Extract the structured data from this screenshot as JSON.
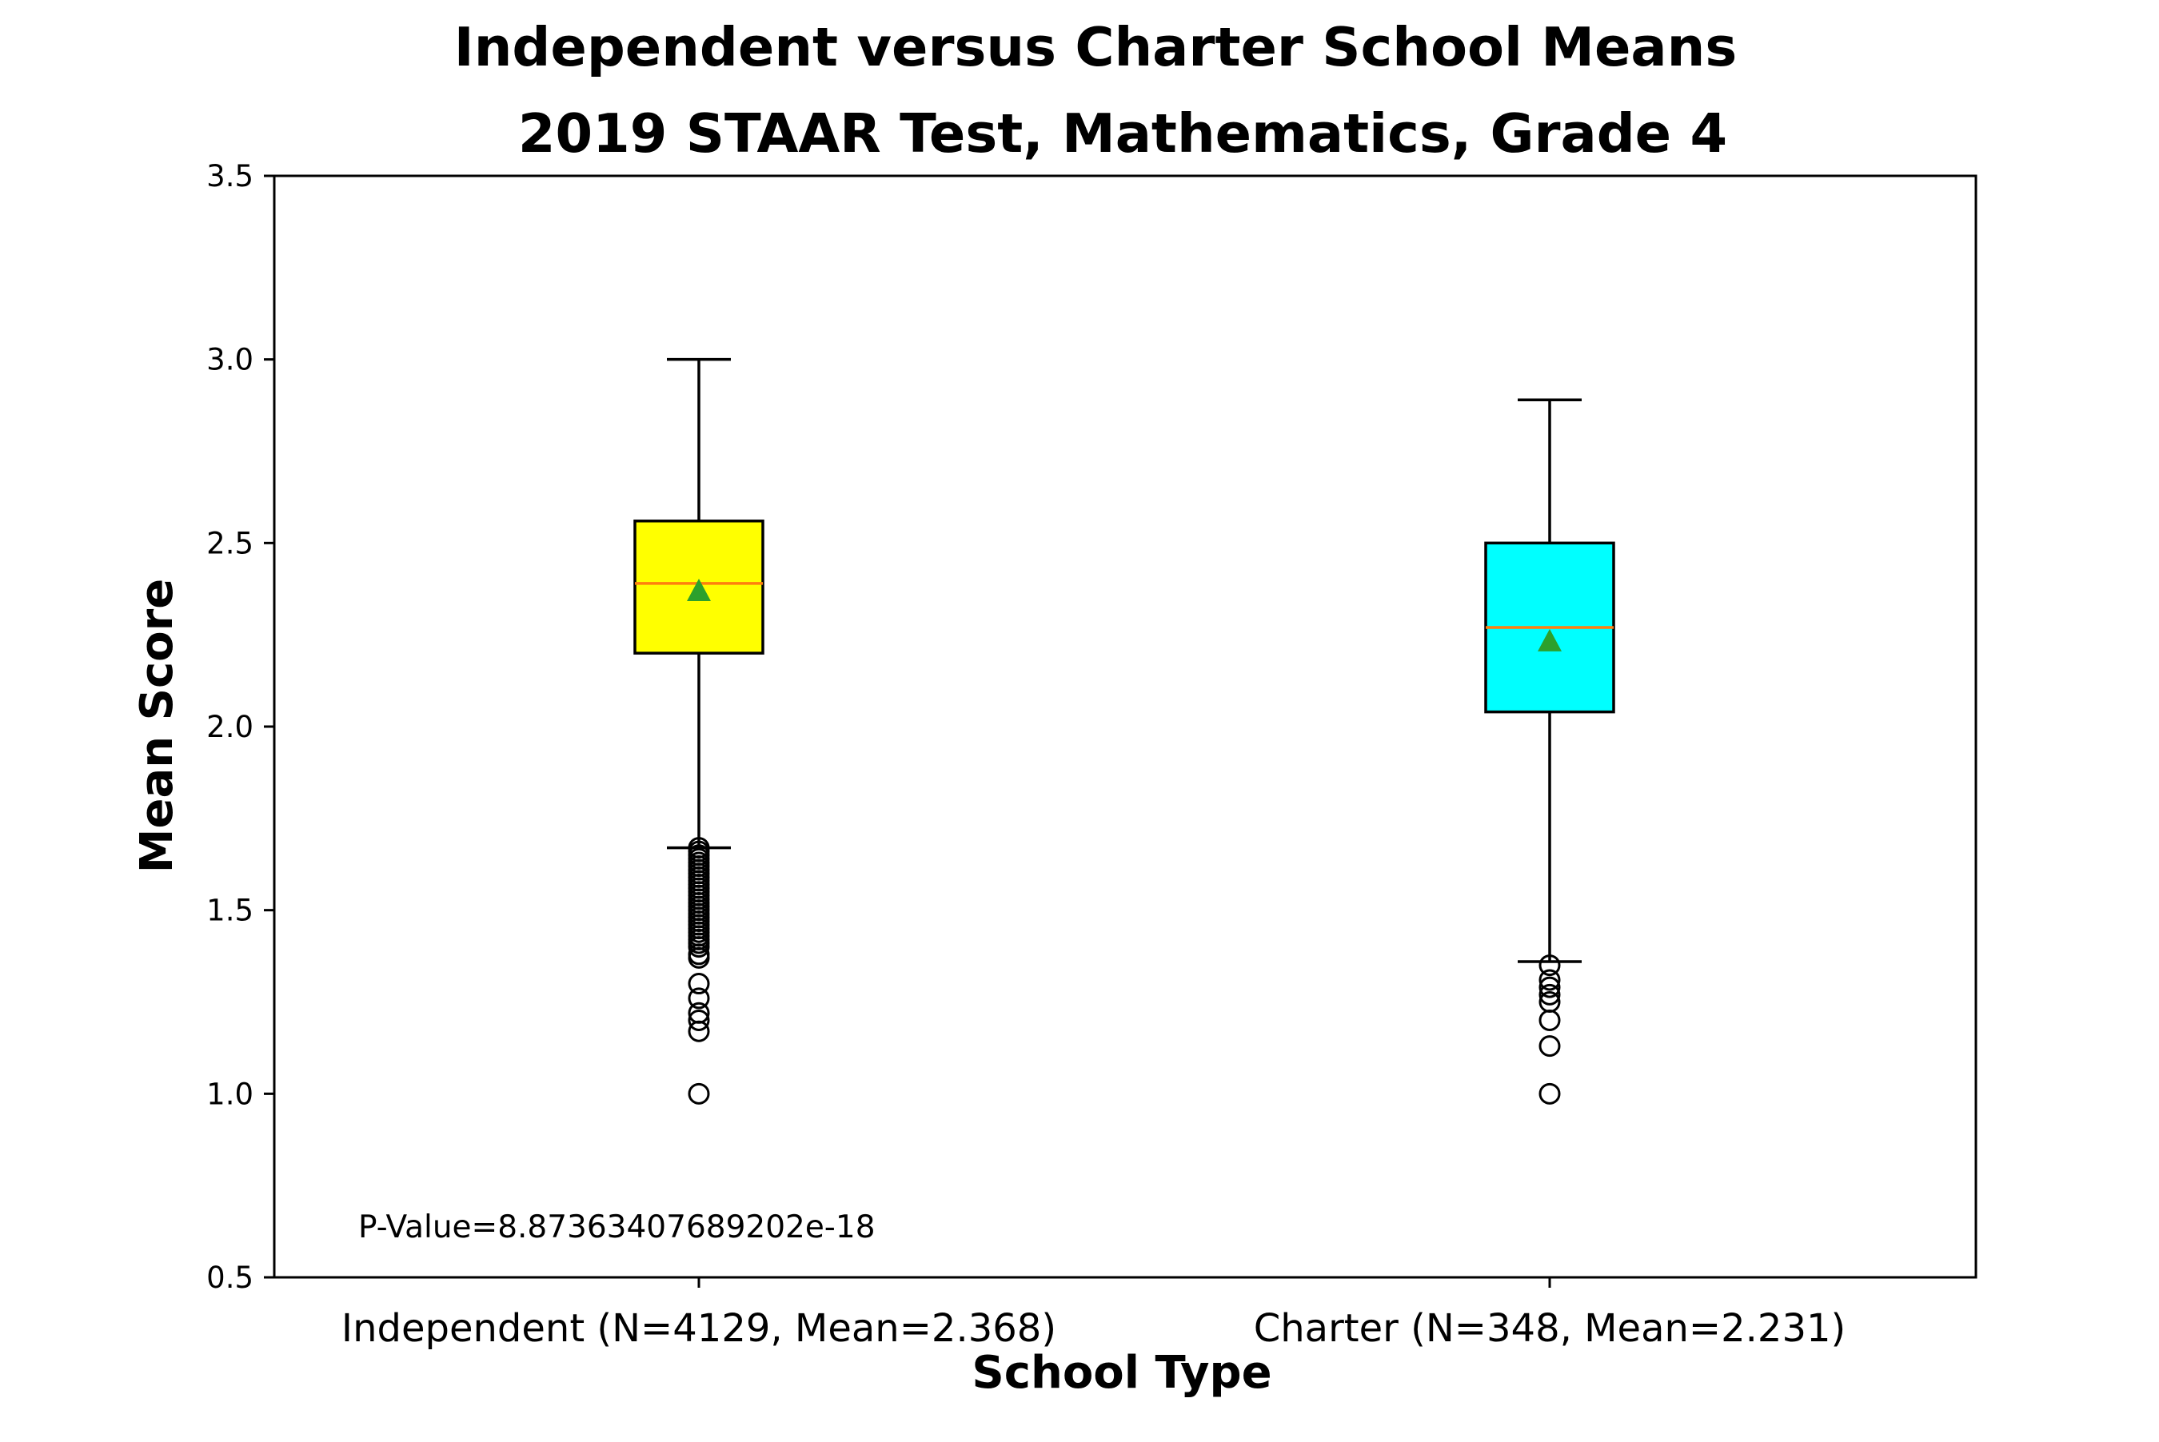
{
  "chart_data": {
    "type": "boxplot",
    "title": "Independent versus Charter School Means",
    "subtitle": "2019 STAAR Test, Mathematics, Grade 4",
    "xlabel": "School Type",
    "ylabel": "Mean Score",
    "ylim": [
      0.5,
      3.5
    ],
    "yticks": [
      0.5,
      1.0,
      1.5,
      2.0,
      2.5,
      3.0,
      3.5
    ],
    "ytick_labels": [
      "0.5",
      "1.0",
      "1.5",
      "2.0",
      "2.5",
      "3.0",
      "3.5"
    ],
    "grid": false,
    "annotation": "P-Value=8.87363407689202e-18",
    "categories": [
      "Independent (N=4129, Mean=2.368)",
      "Charter (N=348, Mean=2.231)"
    ],
    "boxes": [
      {
        "color": "#ffff00",
        "whisker_low": 1.67,
        "q1": 2.2,
        "median": 2.39,
        "q3": 2.56,
        "whisker_high": 3.0,
        "mean": 2.368,
        "outliers": [
          1.67,
          1.66,
          1.65,
          1.64,
          1.63,
          1.62,
          1.61,
          1.6,
          1.59,
          1.58,
          1.57,
          1.56,
          1.55,
          1.54,
          1.53,
          1.52,
          1.51,
          1.5,
          1.49,
          1.48,
          1.47,
          1.46,
          1.45,
          1.44,
          1.43,
          1.42,
          1.41,
          1.4,
          1.38,
          1.37,
          1.3,
          1.26,
          1.22,
          1.2,
          1.17,
          1.0
        ]
      },
      {
        "color": "#00ffff",
        "whisker_low": 1.36,
        "q1": 2.04,
        "median": 2.27,
        "q3": 2.5,
        "whisker_high": 2.89,
        "mean": 2.231,
        "outliers": [
          1.35,
          1.31,
          1.29,
          1.27,
          1.25,
          1.2,
          1.13,
          1.0
        ]
      }
    ],
    "median_color": "#ff7f0e",
    "mean_marker_color": "#2ca02c"
  }
}
